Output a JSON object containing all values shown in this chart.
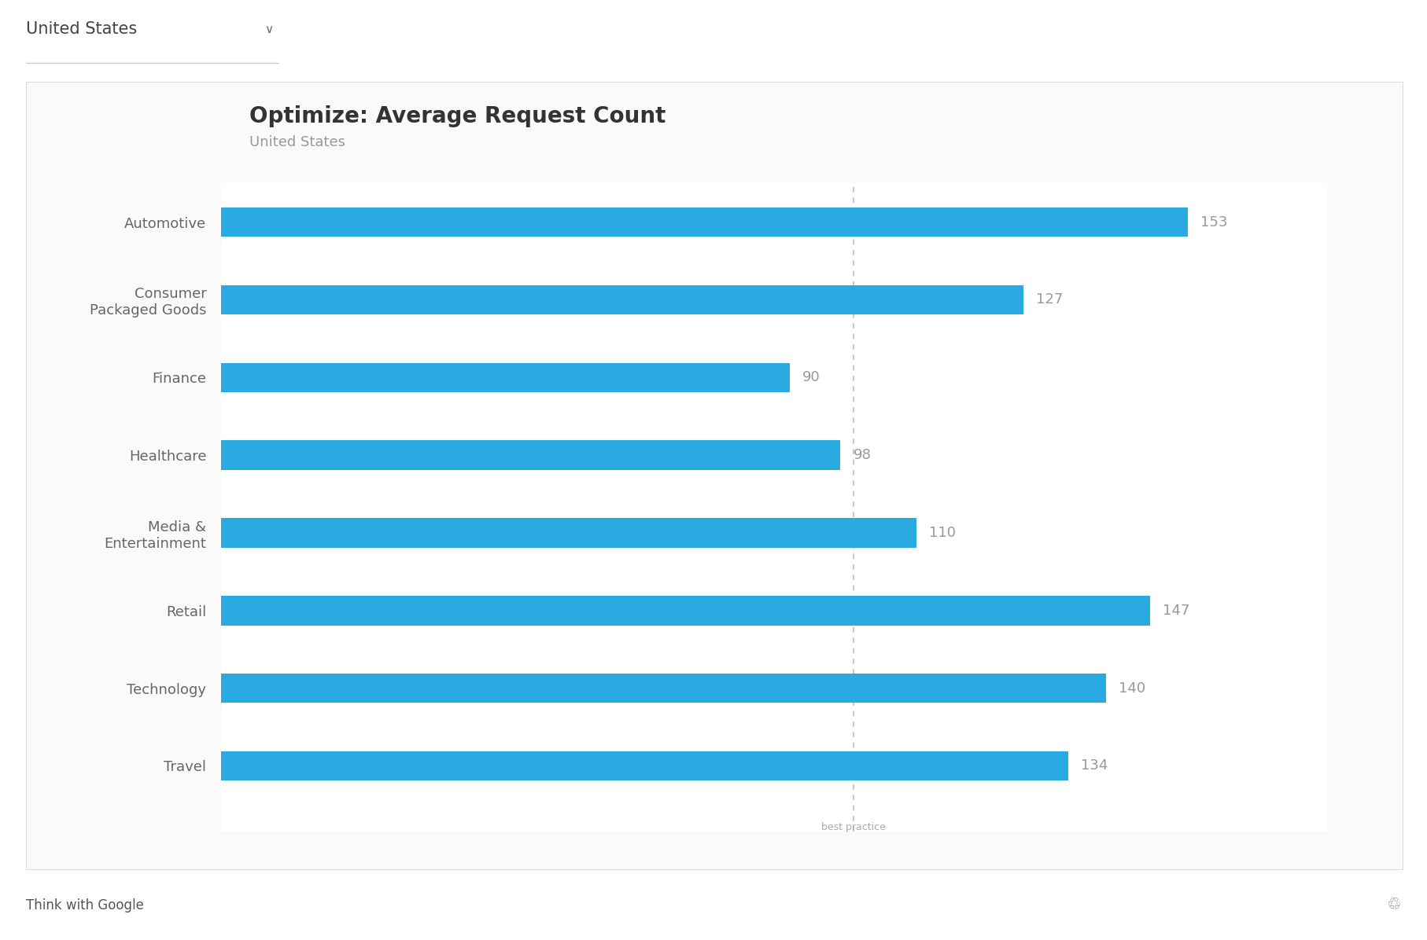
{
  "title": "Optimize: Average Request Count",
  "subtitle": "United States",
  "header_text": "United States",
  "categories": [
    "Automotive",
    "Consumer\nPackaged Goods",
    "Finance",
    "Healthcare",
    "Media &\nEntertainment",
    "Retail",
    "Technology",
    "Travel"
  ],
  "values": [
    153,
    127,
    90,
    98,
    110,
    147,
    140,
    134
  ],
  "bar_color": "#29ABE2",
  "value_color": "#999999",
  "label_color": "#666666",
  "title_color": "#333333",
  "subtitle_color": "#999999",
  "best_practice_value": 100,
  "best_practice_label": "best practice",
  "background_color": "#ffffff",
  "outer_background": "#f5f5f5",
  "footer_background": "#eeeeee",
  "footer_text": "Think with Google",
  "header_background": "#ffffff",
  "bar_height": 0.38,
  "xlim_max": 175,
  "title_fontsize": 20,
  "subtitle_fontsize": 13,
  "label_fontsize": 13,
  "value_fontsize": 13,
  "best_practice_fontsize": 9,
  "footer_fontsize": 12,
  "header_fontsize": 15
}
